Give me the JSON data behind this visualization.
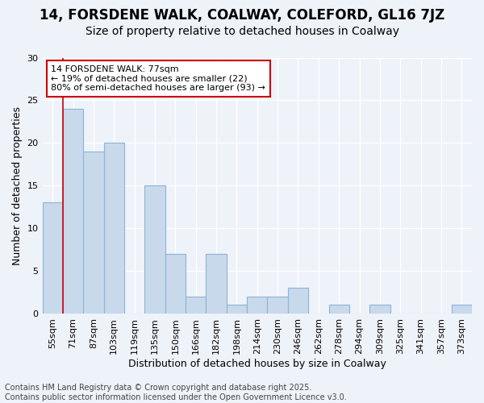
{
  "title": "14, FORSDENE WALK, COALWAY, COLEFORD, GL16 7JZ",
  "subtitle": "Size of property relative to detached houses in Coalway",
  "xlabel": "Distribution of detached houses by size in Coalway",
  "ylabel": "Number of detached properties",
  "categories": [
    "55sqm",
    "71sqm",
    "87sqm",
    "103sqm",
    "119sqm",
    "135sqm",
    "150sqm",
    "166sqm",
    "182sqm",
    "198sqm",
    "214sqm",
    "230sqm",
    "246sqm",
    "262sqm",
    "278sqm",
    "294sqm",
    "309sqm",
    "325sqm",
    "341sqm",
    "357sqm",
    "373sqm"
  ],
  "values": [
    13,
    24,
    19,
    20,
    0,
    15,
    7,
    2,
    7,
    1,
    2,
    2,
    3,
    0,
    1,
    0,
    1,
    0,
    0,
    0,
    1
  ],
  "bar_color": "#c9d9ec",
  "bar_edge_color": "#8ab4d4",
  "annotation_text": "14 FORSDENE WALK: 77sqm\n← 19% of detached houses are smaller (22)\n80% of semi-detached houses are larger (93) →",
  "annotation_box_color": "#ffffff",
  "annotation_box_edge_color": "#cc0000",
  "vline_color": "#cc0000",
  "vline_x_index": 1,
  "ylim": [
    0,
    30
  ],
  "yticks": [
    0,
    5,
    10,
    15,
    20,
    25,
    30
  ],
  "background_color": "#eef2f9",
  "grid_color": "#ffffff",
  "footer_text": "Contains HM Land Registry data © Crown copyright and database right 2025.\nContains public sector information licensed under the Open Government Licence v3.0.",
  "title_fontsize": 12,
  "subtitle_fontsize": 10,
  "xlabel_fontsize": 9,
  "ylabel_fontsize": 9,
  "tick_fontsize": 8,
  "annotation_fontsize": 8,
  "footer_fontsize": 7
}
